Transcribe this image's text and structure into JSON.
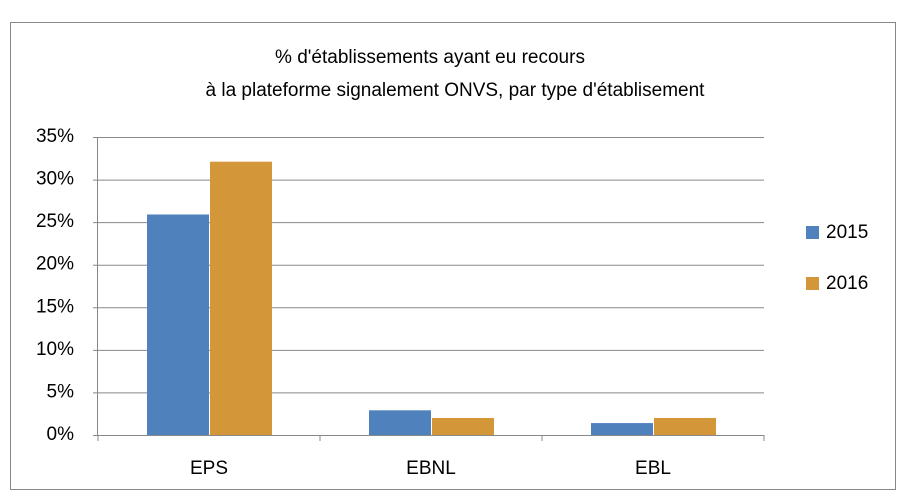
{
  "chart_data": {
    "type": "bar",
    "title": [
      "% d'établissements ayant eu recours",
      "à la plateforme signalement ONVS, par type d'établisement"
    ],
    "categories": [
      "EPS",
      "EBNL",
      "EBL"
    ],
    "series": [
      {
        "name": "2015",
        "color": "#4f81bd",
        "values": [
          25.9,
          2.9,
          1.4
        ]
      },
      {
        "name": "2016",
        "color": "#d39638",
        "values": [
          32.1,
          2.0,
          2.0
        ]
      }
    ],
    "ylim": [
      0,
      35
    ],
    "yticks": [
      {
        "value": 0,
        "label": "0%"
      },
      {
        "value": 5,
        "label": "5%"
      },
      {
        "value": 10,
        "label": "10%"
      },
      {
        "value": 15,
        "label": "15%"
      },
      {
        "value": 20,
        "label": "20%"
      },
      {
        "value": 25,
        "label": "25%"
      },
      {
        "value": 30,
        "label": "30%"
      },
      {
        "value": 35,
        "label": "35%"
      }
    ],
    "grid": true,
    "legend": "right"
  }
}
